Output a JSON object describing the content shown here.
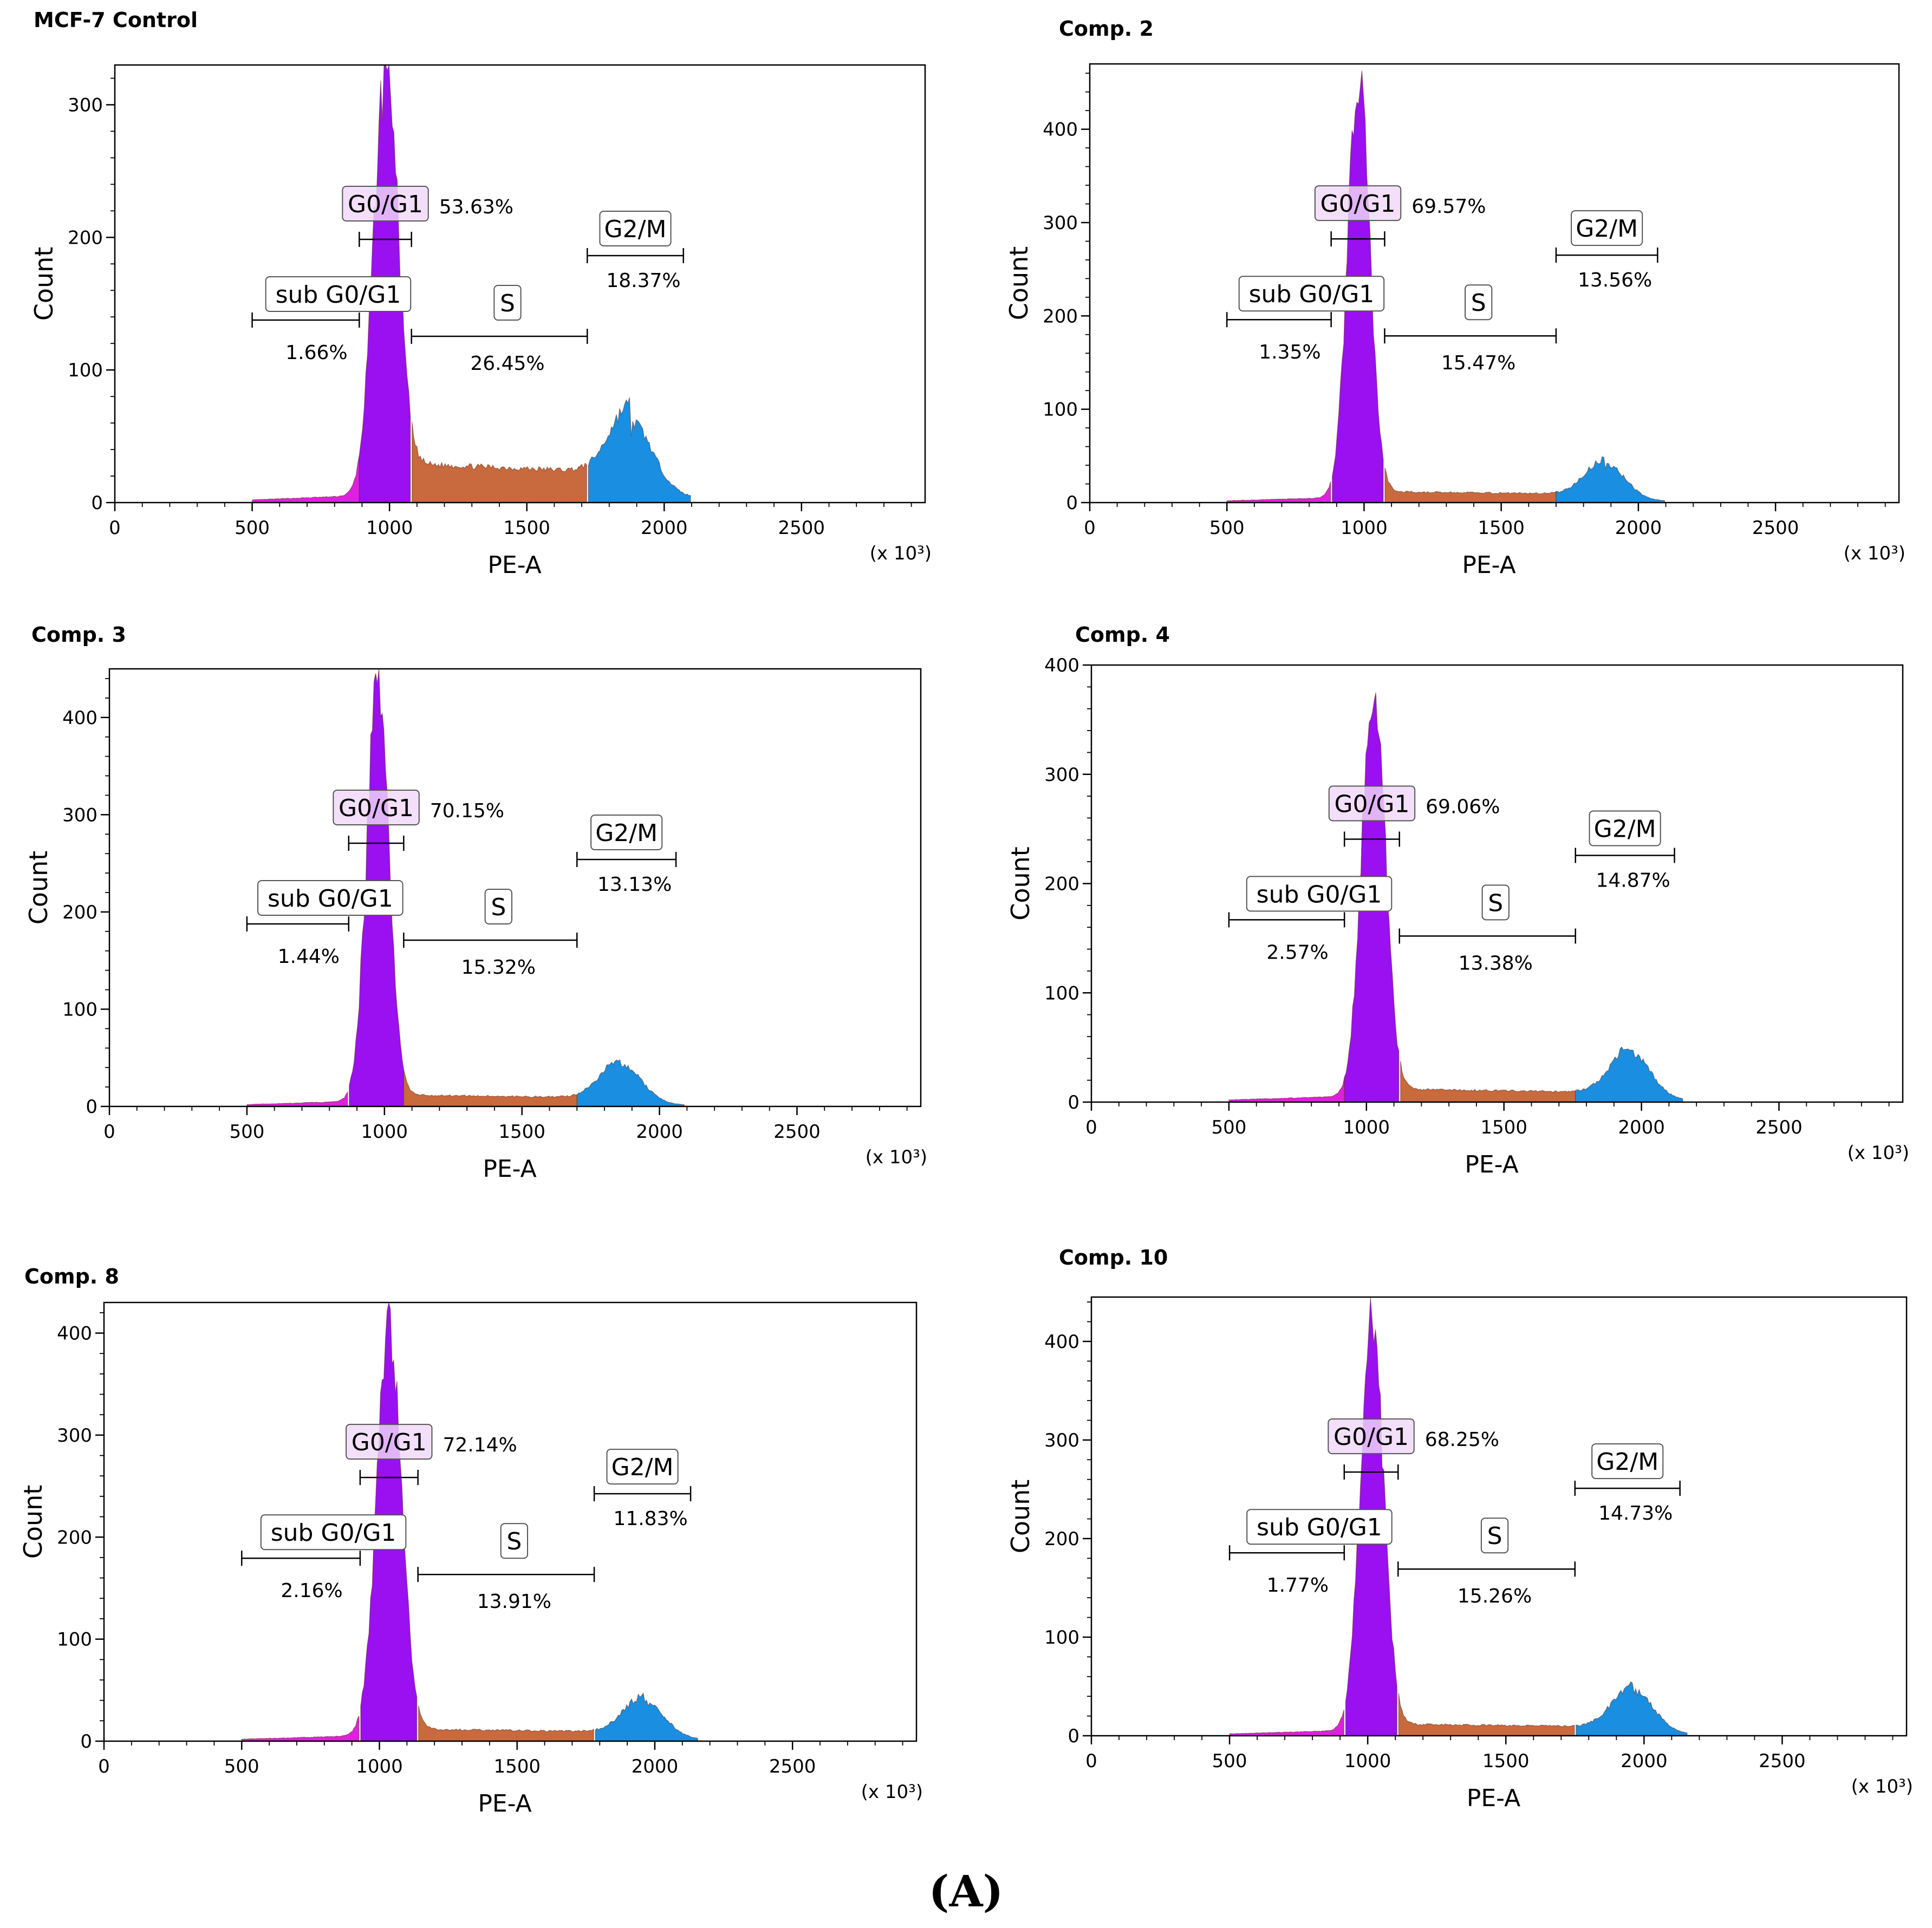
{
  "figure": {
    "caption": "(A)"
  },
  "colors": {
    "sub_g0g1": "#e020e0",
    "g0g1": "#9a10f0",
    "s": "#c8693e",
    "g2m": "#1a8ee0",
    "axis": "#000000",
    "label_box": "#ffffff",
    "g0g1_label_box": "#f0d8f8"
  },
  "chart_data": [
    {
      "type": "histogram",
      "title": "MCF-7    Control",
      "xlabel": "PE-A",
      "ylabel": "Count",
      "xunit": "(x 10³)",
      "xlim": [
        0,
        2950
      ],
      "ylim": [
        0,
        330
      ],
      "xticks": [
        0,
        500,
        1000,
        1500,
        2000,
        2500
      ],
      "yticks": [
        0,
        100,
        200,
        300
      ],
      "peaks": {
        "g1_center": 985,
        "g1_height": 316,
        "g1_sd": 44,
        "g2_center": 1880,
        "g2_height": 52,
        "g2_sd": 75,
        "s_level": 30
      },
      "boundaries": [
        500,
        890,
        1080,
        1720,
        2070
      ],
      "gates": [
        {
          "name": "sub G0/G1",
          "x1": 500,
          "x2": 890,
          "percent": "1.66%"
        },
        {
          "name": "G0/G1",
          "x1": 890,
          "x2": 1080,
          "percent": "53.63%"
        },
        {
          "name": "S",
          "x1": 1080,
          "x2": 1720,
          "percent": "26.45%"
        },
        {
          "name": "G2/M",
          "x1": 1720,
          "x2": 2070,
          "percent": "18.37%"
        }
      ]
    },
    {
      "type": "histogram",
      "title": "Comp. 2",
      "xlabel": "PE-A",
      "ylabel": "Count",
      "xunit": "(x 10³)",
      "xlim": [
        0,
        2950
      ],
      "ylim": [
        0,
        470
      ],
      "xticks": [
        0,
        500,
        1000,
        1500,
        2000,
        2500
      ],
      "yticks": [
        0,
        100,
        200,
        300,
        400
      ],
      "peaks": {
        "g1_center": 980,
        "g1_height": 445,
        "g1_sd": 40,
        "g2_center": 1880,
        "g2_height": 38,
        "g2_sd": 70,
        "s_level": 12
      },
      "boundaries": [
        500,
        880,
        1075,
        1700,
        2070
      ],
      "gates": [
        {
          "name": "sub G0/G1",
          "x1": 500,
          "x2": 880,
          "percent": "1.35%"
        },
        {
          "name": "G0/G1",
          "x1": 880,
          "x2": 1075,
          "percent": "69.57%"
        },
        {
          "name": "S",
          "x1": 1075,
          "x2": 1700,
          "percent": "15.47%"
        },
        {
          "name": "G2/M",
          "x1": 1700,
          "x2": 2070,
          "percent": "13.56%"
        }
      ]
    },
    {
      "type": "histogram",
      "title": "Comp. 3",
      "xlabel": "PE-A",
      "ylabel": "Count",
      "xunit": "(x 10³)",
      "xlim": [
        0,
        2950
      ],
      "ylim": [
        0,
        450
      ],
      "xticks": [
        0,
        500,
        1000,
        1500,
        2000,
        2500
      ],
      "yticks": [
        0,
        100,
        200,
        300,
        400
      ],
      "peaks": {
        "g1_center": 975,
        "g1_height": 428,
        "g1_sd": 40,
        "g2_center": 1860,
        "g2_height": 40,
        "g2_sd": 72,
        "s_level": 12
      },
      "boundaries": [
        500,
        870,
        1070,
        1700,
        2060
      ],
      "gates": [
        {
          "name": "sub G0/G1",
          "x1": 500,
          "x2": 870,
          "percent": "1.44%"
        },
        {
          "name": "G0/G1",
          "x1": 870,
          "x2": 1070,
          "percent": "70.15%"
        },
        {
          "name": "S",
          "x1": 1070,
          "x2": 1700,
          "percent": "15.32%"
        },
        {
          "name": "G2/M",
          "x1": 1700,
          "x2": 2060,
          "percent": "13.13%"
        }
      ]
    },
    {
      "type": "histogram",
      "title": "Comp. 4",
      "xlabel": "PE-A",
      "ylabel": "Count",
      "xunit": "(x 10³)",
      "xlim": [
        0,
        2950
      ],
      "ylim": [
        0,
        400
      ],
      "xticks": [
        0,
        500,
        1000,
        1500,
        2000,
        2500
      ],
      "yticks": [
        0,
        100,
        200,
        300,
        400
      ],
      "peaks": {
        "g1_center": 1025,
        "g1_height": 380,
        "g1_sd": 42,
        "g2_center": 1960,
        "g2_height": 42,
        "g2_sd": 70,
        "s_level": 12
      },
      "boundaries": [
        500,
        920,
        1120,
        1760,
        2120
      ],
      "gates": [
        {
          "name": "sub G0/G1",
          "x1": 500,
          "x2": 920,
          "percent": "2.57%"
        },
        {
          "name": "G0/G1",
          "x1": 920,
          "x2": 1120,
          "percent": "69.06%"
        },
        {
          "name": "S",
          "x1": 1120,
          "x2": 1760,
          "percent": "13.38%"
        },
        {
          "name": "G2/M",
          "x1": 1760,
          "x2": 2120,
          "percent": "14.87%"
        }
      ]
    },
    {
      "type": "histogram",
      "title": "Comp. 8",
      "xlabel": "PE-A",
      "ylabel": "Count",
      "xunit": "(x 10³)",
      "xlim": [
        0,
        2950
      ],
      "ylim": [
        0,
        430
      ],
      "xticks": [
        0,
        500,
        1000,
        1500,
        2000,
        2500
      ],
      "yticks": [
        0,
        100,
        200,
        300,
        400
      ],
      "peaks": {
        "g1_center": 1035,
        "g1_height": 400,
        "g1_sd": 45,
        "g2_center": 1960,
        "g2_height": 35,
        "g2_sd": 72,
        "s_level": 12
      },
      "boundaries": [
        500,
        930,
        1140,
        1780,
        2130
      ],
      "gates": [
        {
          "name": "sub G0/G1",
          "x1": 500,
          "x2": 930,
          "percent": "2.16%"
        },
        {
          "name": "G0/G1",
          "x1": 930,
          "x2": 1140,
          "percent": "72.14%"
        },
        {
          "name": "S",
          "x1": 1140,
          "x2": 1780,
          "percent": "13.91%"
        },
        {
          "name": "G2/M",
          "x1": 1780,
          "x2": 2130,
          "percent": "11.83%"
        }
      ]
    },
    {
      "type": "histogram",
      "title": "Comp. 10",
      "xlabel": "PE-A",
      "ylabel": "Count",
      "xunit": "(x 10³)",
      "xlim": [
        0,
        2950
      ],
      "ylim": [
        0,
        445
      ],
      "xticks": [
        0,
        500,
        1000,
        1500,
        2000,
        2500
      ],
      "yticks": [
        0,
        100,
        200,
        300,
        400
      ],
      "peaks": {
        "g1_center": 1015,
        "g1_height": 418,
        "g1_sd": 42,
        "g2_center": 1960,
        "g2_height": 42,
        "g2_sd": 72,
        "s_level": 12
      },
      "boundaries": [
        500,
        915,
        1110,
        1750,
        2130
      ],
      "gates": [
        {
          "name": "sub G0/G1",
          "x1": 500,
          "x2": 915,
          "percent": "1.77%"
        },
        {
          "name": "G0/G1",
          "x1": 915,
          "x2": 1110,
          "percent": "68.25%"
        },
        {
          "name": "S",
          "x1": 1110,
          "x2": 1750,
          "percent": "15.26%"
        },
        {
          "name": "G2/M",
          "x1": 1750,
          "x2": 2130,
          "percent": "14.73%"
        }
      ]
    }
  ]
}
